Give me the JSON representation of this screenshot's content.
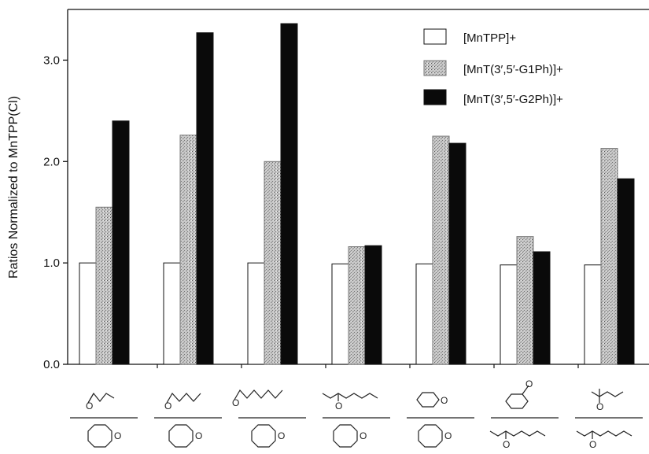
{
  "chart_data": {
    "type": "bar",
    "ylabel": "Ratios Normalized to MnTPP(Cl)",
    "ylim": [
      0.0,
      3.5
    ],
    "yticks": [
      "0.0",
      "1.0",
      "2.0",
      "3.0"
    ],
    "categories": [
      "pair-1",
      "pair-2",
      "pair-3",
      "pair-4",
      "pair-5",
      "pair-6",
      "pair-7"
    ],
    "category_images": [
      {
        "top": "1,2-epoxybutane",
        "bottom": "cyclooctene oxide"
      },
      {
        "top": "1,2-epoxyhexane",
        "bottom": "cyclooctene oxide"
      },
      {
        "top": "1,2-epoxyoctane",
        "bottom": "cyclooctene oxide"
      },
      {
        "top": "2-methyl-1,2-epoxyheptane",
        "bottom": "cyclooctene oxide"
      },
      {
        "top": "cyclohexene oxide",
        "bottom": "cyclooctene oxide"
      },
      {
        "top": "styrene oxide",
        "bottom": "1,2-epoxyoctane"
      },
      {
        "top": "2,2,3-trimethyl-epoxypentane",
        "bottom": "1,2-epoxyoctane"
      }
    ],
    "series": [
      {
        "name": "[MnTPP]+",
        "fill": "#ffffff",
        "pattern": "none",
        "values": [
          1.0,
          1.0,
          1.0,
          0.99,
          0.99,
          0.98,
          0.98
        ]
      },
      {
        "name": "[MnT(3′,5′-G1Ph)]+",
        "fill": "#b8b8b8",
        "pattern": "stipple",
        "values": [
          1.55,
          2.26,
          2.0,
          1.16,
          2.25,
          1.26,
          2.13
        ]
      },
      {
        "name": "[MnT(3′,5′-G2Ph)]+",
        "fill": "#0a0a0a",
        "pattern": "solid",
        "values": [
          2.4,
          3.27,
          3.36,
          1.17,
          2.18,
          1.11,
          1.83
        ]
      }
    ],
    "legend_position": "top-right",
    "grid": false
  }
}
